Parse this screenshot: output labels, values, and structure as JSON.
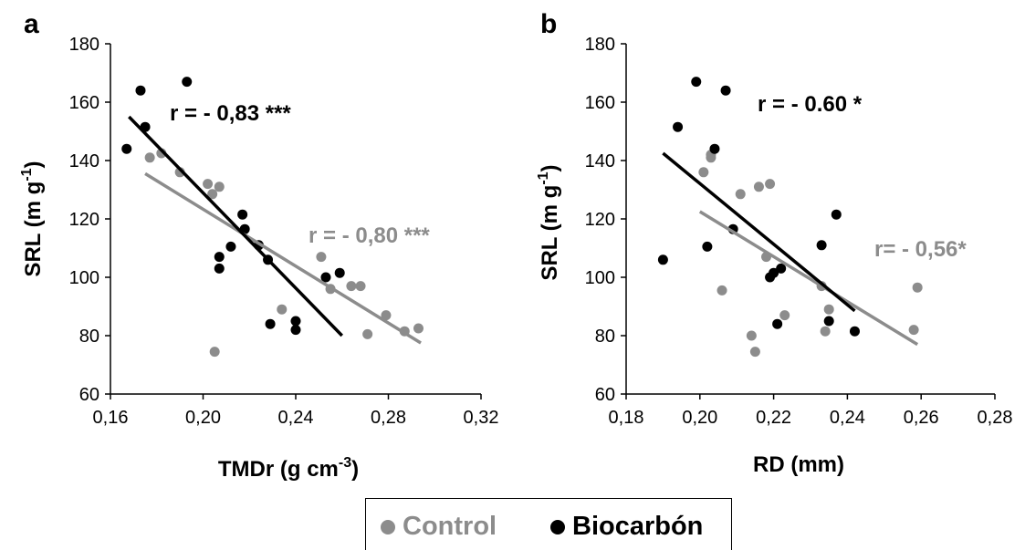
{
  "colors": {
    "control": "#8c8c8c",
    "biocarbon": "#000000"
  },
  "legend": {
    "control": "Control",
    "biocarbon": "Biocarbón"
  },
  "chart_data": [
    {
      "type": "scatter",
      "panel": "a",
      "xlabel_main": "TMDr (g cm",
      "xlabel_sup": "-3",
      "xlabel_end": ")",
      "ylabel_main": "SRL (m g",
      "ylabel_sup": "-1",
      "ylabel_end": ")",
      "xlim": [
        0.16,
        0.32
      ],
      "ylim": [
        60,
        180
      ],
      "xticks": [
        0.16,
        0.2,
        0.24,
        0.28,
        0.32
      ],
      "xtick_labels": [
        "0,16",
        "0,20",
        "0,24",
        "0,28",
        "0,32"
      ],
      "yticks": [
        60,
        80,
        100,
        120,
        140,
        160,
        180
      ],
      "ytick_labels": [
        "60",
        "80",
        "100",
        "120",
        "140",
        "160",
        "180"
      ],
      "series": [
        {
          "name": "Control",
          "points": [
            [
              0.177,
              141
            ],
            [
              0.182,
              142.5
            ],
            [
              0.19,
              136
            ],
            [
              0.202,
              132
            ],
            [
              0.204,
              128.5
            ],
            [
              0.207,
              131
            ],
            [
              0.205,
              74.5
            ],
            [
              0.234,
              89
            ],
            [
              0.251,
              107
            ],
            [
              0.255,
              96
            ],
            [
              0.264,
              97
            ],
            [
              0.268,
              97
            ],
            [
              0.271,
              80.5
            ],
            [
              0.279,
              87
            ],
            [
              0.287,
              81.5
            ],
            [
              0.293,
              82.5
            ]
          ],
          "trend": [
            [
              0.175,
              135.5
            ],
            [
              0.294,
              77.5
            ]
          ],
          "annotation": "r = - 0,80 ***"
        },
        {
          "name": "Biocarbón",
          "points": [
            [
              0.167,
              144
            ],
            [
              0.173,
              164
            ],
            [
              0.175,
              151.5
            ],
            [
              0.193,
              167
            ],
            [
              0.207,
              107
            ],
            [
              0.207,
              103
            ],
            [
              0.212,
              110.5
            ],
            [
              0.217,
              121.5
            ],
            [
              0.218,
              116.5
            ],
            [
              0.224,
              111
            ],
            [
              0.228,
              106
            ],
            [
              0.229,
              84
            ],
            [
              0.24,
              82
            ],
            [
              0.24,
              85
            ],
            [
              0.253,
              100
            ],
            [
              0.259,
              101.5
            ]
          ],
          "trend": [
            [
              0.168,
              155
            ],
            [
              0.26,
              80
            ]
          ],
          "annotation": "r = - 0,83 ***"
        }
      ]
    },
    {
      "type": "scatter",
      "panel": "b",
      "xlabel_main": "RD (mm)",
      "xlabel_sup": "",
      "xlabel_end": "",
      "ylabel_main": "SRL (m g",
      "ylabel_sup": "-1",
      "ylabel_end": ")",
      "xlim": [
        0.18,
        0.28
      ],
      "ylim": [
        60,
        180
      ],
      "xticks": [
        0.18,
        0.2,
        0.22,
        0.24,
        0.26,
        0.28
      ],
      "xtick_labels": [
        "0,18",
        "0,20",
        "0,22",
        "0,24",
        "0,26",
        "0,28"
      ],
      "yticks": [
        60,
        80,
        100,
        120,
        140,
        160,
        180
      ],
      "ytick_labels": [
        "60",
        "80",
        "100",
        "120",
        "140",
        "160",
        "180"
      ],
      "series": [
        {
          "name": "Control",
          "points": [
            [
              0.201,
              136
            ],
            [
              0.203,
              142
            ],
            [
              0.203,
              141
            ],
            [
              0.206,
              95.5
            ],
            [
              0.211,
              128.5
            ],
            [
              0.214,
              80
            ],
            [
              0.215,
              74.5
            ],
            [
              0.216,
              131
            ],
            [
              0.218,
              107
            ],
            [
              0.219,
              132
            ],
            [
              0.223,
              87
            ],
            [
              0.233,
              97
            ],
            [
              0.234,
              81.5
            ],
            [
              0.235,
              89
            ],
            [
              0.258,
              82
            ],
            [
              0.259,
              96.5
            ]
          ],
          "trend": [
            [
              0.2,
              122.5
            ],
            [
              0.259,
              77
            ]
          ],
          "annotation": "r= - 0,56*"
        },
        {
          "name": "Biocarbón",
          "points": [
            [
              0.19,
              106
            ],
            [
              0.194,
              151.5
            ],
            [
              0.199,
              167
            ],
            [
              0.202,
              110.5
            ],
            [
              0.204,
              144
            ],
            [
              0.207,
              164
            ],
            [
              0.209,
              116.5
            ],
            [
              0.219,
              100
            ],
            [
              0.22,
              101.5
            ],
            [
              0.221,
              84
            ],
            [
              0.222,
              103
            ],
            [
              0.233,
              111
            ],
            [
              0.235,
              85
            ],
            [
              0.237,
              121.5
            ],
            [
              0.242,
              81.5
            ]
          ],
          "trend": [
            [
              0.19,
              142.5
            ],
            [
              0.242,
              88.5
            ]
          ],
          "annotation": "r = - 0.60 *"
        }
      ]
    }
  ]
}
